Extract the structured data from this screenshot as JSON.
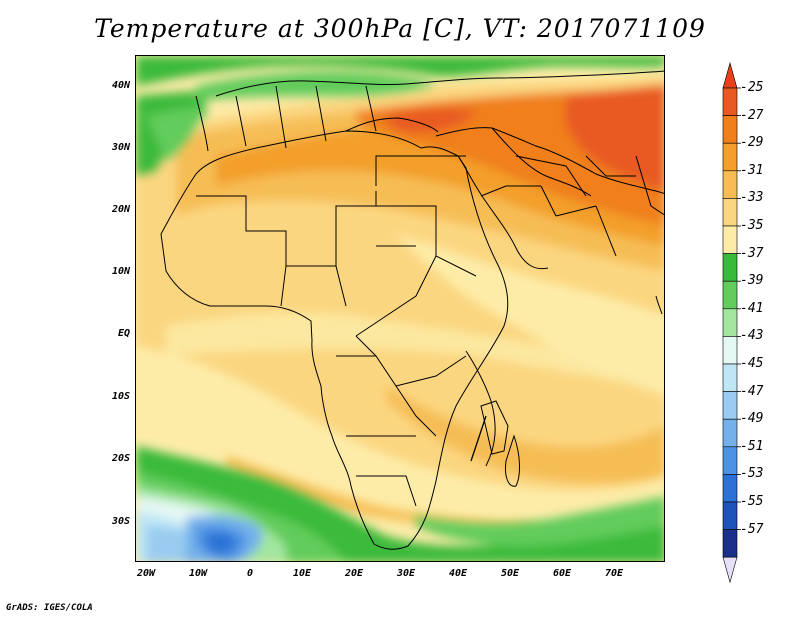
{
  "title": "Temperature at 300hPa [C], VT: 2017071109",
  "footer": "GrADS: IGES/COLA",
  "map": {
    "region": "Africa, Middle East and South Asia",
    "projection": "latlon",
    "variable": "Temperature",
    "level": "300hPa",
    "units": "C",
    "valid_time": "2017071109",
    "lon_range": [
      -22,
      80
    ],
    "lat_range": [
      -37,
      45
    ],
    "lat_ticks": [
      "40N",
      "30N",
      "20N",
      "10N",
      "EQ",
      "10S",
      "20S",
      "30S"
    ],
    "lon_ticks": [
      "20W",
      "10W",
      "0",
      "10E",
      "20E",
      "30E",
      "40E",
      "50E",
      "60E",
      "70E"
    ],
    "lat_tick_values": [
      40,
      30,
      20,
      10,
      0,
      -10,
      -20,
      -30
    ],
    "lon_tick_values": [
      -20,
      -10,
      0,
      10,
      20,
      30,
      40,
      50,
      60,
      70
    ]
  },
  "legend": {
    "labels": [
      "-25",
      "-27",
      "-29",
      "-31",
      "-33",
      "-35",
      "-37",
      "-39",
      "-41",
      "-43",
      "-45",
      "-47",
      "-49",
      "-51",
      "-53",
      "-55",
      "-57"
    ],
    "colors": [
      "#e85a20",
      "#f07f1a",
      "#f39f2a",
      "#f6bd55",
      "#fbd680",
      "#fdeca8",
      "#3aba3a",
      "#62cc5c",
      "#a3e6a0",
      "#e6f8f4",
      "#bfe6f5",
      "#99ccf0",
      "#74b1ea",
      "#4d93e3",
      "#2c72d6",
      "#1d52b8",
      "#1a2f8a"
    ],
    "top_cap_color": "#e8401a",
    "bottom_cap_color": "#e8e0f8"
  }
}
